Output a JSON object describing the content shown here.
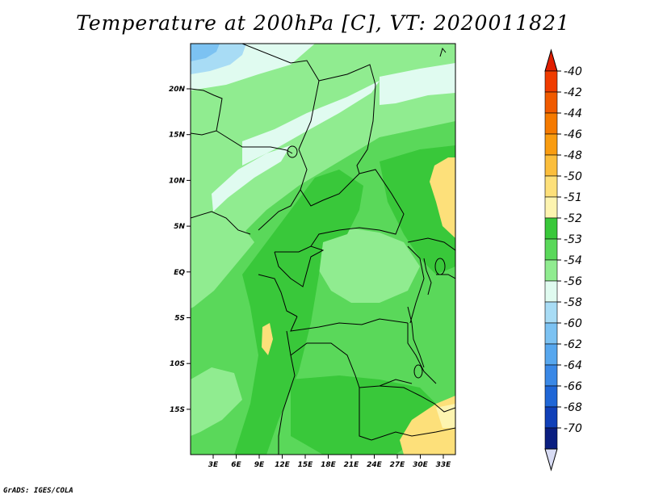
{
  "title": "Temperature at 200hPa [C], VT: 2020011821",
  "credit": "GrADS: IGES/COLA",
  "map": {
    "lat_labels": [
      "20N",
      "15N",
      "10N",
      "5N",
      "EQ",
      "5S",
      "10S",
      "15S"
    ],
    "lon_labels": [
      "3E",
      "6E",
      "9E",
      "12E",
      "15E",
      "18E",
      "21E",
      "24E",
      "27E",
      "30E",
      "33E"
    ]
  },
  "colorbar": {
    "labels": [
      "-40",
      "-42",
      "-44",
      "-46",
      "-48",
      "-50",
      "-51",
      "-52",
      "-53",
      "-54",
      "-56",
      "-58",
      "-60",
      "-62",
      "-64",
      "-66",
      "-68",
      "-70"
    ],
    "colors": [
      "#f03c00",
      "#f05a00",
      "#f57a00",
      "#f99c10",
      "#fbbe3c",
      "#fde07a",
      "#fdf4b0",
      "#39c83a",
      "#5ad85a",
      "#90ec90",
      "#e0fbf0",
      "#a8dcf5",
      "#7cc2f2",
      "#57a7ee",
      "#3a88e6",
      "#1f66d6",
      "#1040b8",
      "#0a1e80"
    ],
    "top_tip_color": "#e01e00",
    "bottom_tip_color": "#d8dcf4"
  },
  "field_colors": {
    "light_green": "#90ec90",
    "mid_green": "#5ad85a",
    "dark_green": "#39c83a",
    "pale_cyan": "#e0fbf0",
    "light_blue": "#a8dcf5",
    "blue": "#7cc2f2",
    "pale_yellow": "#fde07a",
    "cream": "#fdf4b0"
  }
}
